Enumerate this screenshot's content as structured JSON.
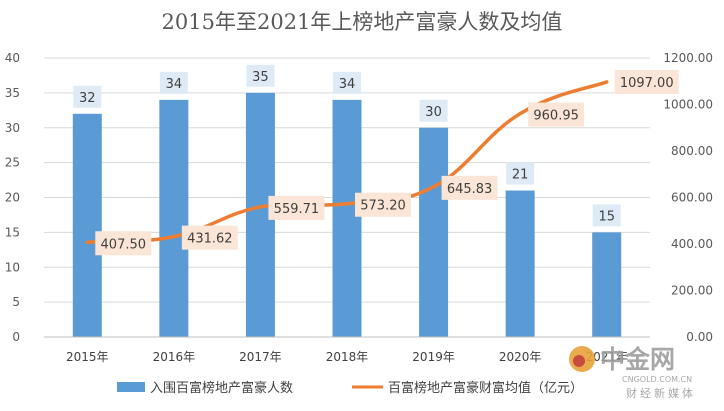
{
  "chart_data": {
    "type": "bar",
    "title": "2015年至2021年上榜地产富豪人数及均值",
    "categories": [
      "2015年",
      "2016年",
      "2017年",
      "2018年",
      "2019年",
      "2020年",
      "2021年"
    ],
    "series": [
      {
        "name": "入围百富榜地产富豪人数",
        "type": "bar",
        "axis": "left",
        "color": "#5B9BD5",
        "values": [
          32,
          34,
          35,
          34,
          30,
          21,
          15
        ],
        "labels": [
          "32",
          "34",
          "35",
          "34",
          "30",
          "21",
          "15"
        ]
      },
      {
        "name": "百富榜地产富豪财富均值（亿元）",
        "type": "line",
        "axis": "right",
        "color": "#ED7D31",
        "values": [
          407.5,
          431.62,
          559.71,
          573.2,
          645.83,
          960.95,
          1097.0
        ],
        "labels": [
          "407.50",
          "431.62",
          "559.71",
          "573.20",
          "645.83",
          "960.95",
          "1097.00"
        ]
      }
    ],
    "y_left": {
      "min": 0,
      "max": 40,
      "ticks": [
        "0",
        "5",
        "10",
        "15",
        "20",
        "25",
        "30",
        "35",
        "40"
      ]
    },
    "y_right": {
      "min": 0,
      "max": 1200,
      "ticks": [
        "0.00",
        "200.00",
        "400.00",
        "600.00",
        "800.00",
        "1000.00",
        "1200.00"
      ]
    },
    "grid": true,
    "legend_position": "bottom"
  },
  "watermark": {
    "logo_text": "中金网",
    "url": "CNGOLD.COM.CN",
    "tagline": "财经新媒体"
  }
}
